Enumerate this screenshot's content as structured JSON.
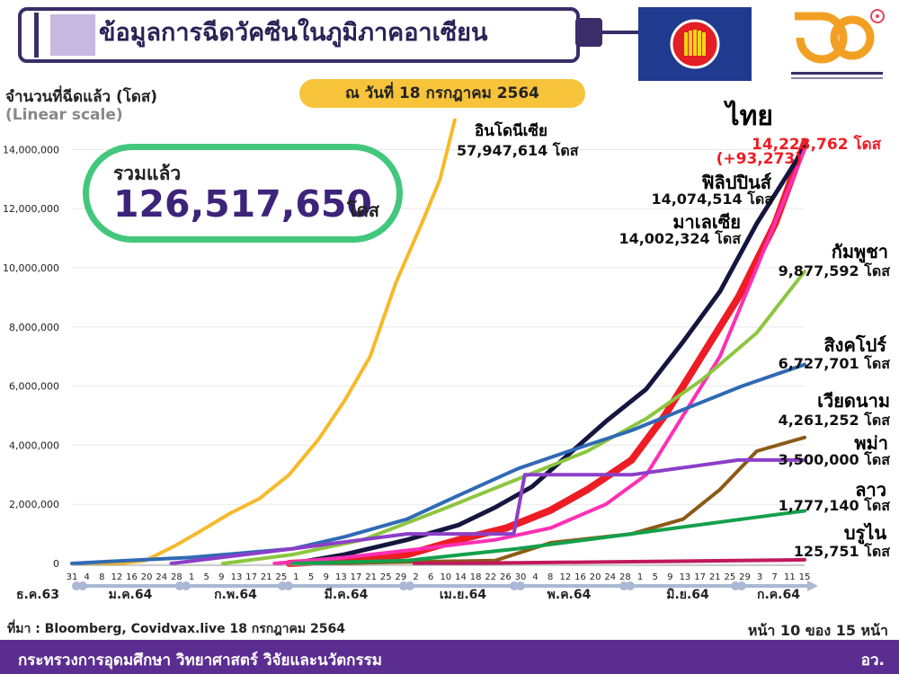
{
  "header": {
    "title": "ข้อมูลการฉีดวัคซีนในภูมิภาคอาเซียน",
    "y_axis_title": "จำนวนที่ฉีดแล้ว (โดส)",
    "y_scale_note": "(Linear scale)",
    "date_badge": "ณ วันที่ 18 กรกฎาคม 2564"
  },
  "total": {
    "label": "รวมแล้ว",
    "value": "126,517,650",
    "unit": "โดส"
  },
  "series_labels": [
    {
      "name": "อินโดนีเซีย",
      "value": "57,947,614 โดส",
      "color": "#f7b92b"
    },
    {
      "name": "ไทย",
      "value": "14,223,762 โดส",
      "change": "(+93,273)",
      "color": "#ee1c24"
    },
    {
      "name": "ฟิลิปปินส์",
      "value": "14,074,514 โดส",
      "color": "#14163f"
    },
    {
      "name": "มาเลเซีย",
      "value": "14,002,324 โดส",
      "color": "#ff2fb4"
    },
    {
      "name": "กัมพูชา",
      "value": "9,877,592 โดส",
      "color": "#8cc63f"
    },
    {
      "name": "สิงคโปร์",
      "value": "6,727,701 โดส",
      "color": "#2f6ab5"
    },
    {
      "name": "เวียดนาม",
      "value": "4,261,252 โดส",
      "color": "#8b5a17"
    },
    {
      "name": "พม่า",
      "value": "3,500,000 โดส",
      "color": "#8c3fc8"
    },
    {
      "name": "ลาว",
      "value": "1,777,140 โดส",
      "color": "#14a04b"
    },
    {
      "name": "บรูไน",
      "value": "125,751 โดส",
      "color": "#c2185b"
    }
  ],
  "chart_data": {
    "type": "line",
    "y_ticks": [
      "0",
      "2,000,000",
      "4,000,000",
      "6,000,000",
      "8,000,000",
      "10,000,000",
      "12,000,000",
      "14,000,000"
    ],
    "ylim": [
      0,
      14500000
    ],
    "x_day_ticks": [
      "31",
      "4",
      "8",
      "12",
      "16",
      "20",
      "24",
      "28",
      "1",
      "5",
      "9",
      "13",
      "17",
      "21",
      "25",
      "1",
      "5",
      "9",
      "13",
      "17",
      "21",
      "25",
      "29",
      "2",
      "6",
      "10",
      "14",
      "18",
      "22",
      "26",
      "30",
      "4",
      "8",
      "12",
      "16",
      "20",
      "24",
      "28",
      "1",
      "5",
      "9",
      "13",
      "17",
      "21",
      "25",
      "29",
      "3",
      "7",
      "11",
      "15"
    ],
    "x_month_labels": [
      "ธ.ค.63",
      "ม.ค.64",
      "ก.พ.64",
      "มี.ค.64",
      "เม.ย.64",
      "พ.ค.64",
      "มิ.ย.64",
      "ก.ค.64"
    ],
    "series": [
      {
        "name": "อินโดนีเซีย",
        "color": "#f7b92b",
        "x": [
          "2020-12-31",
          "2021-01-13",
          "2021-01-20",
          "2021-01-28",
          "2021-02-04",
          "2021-02-12",
          "2021-02-20",
          "2021-02-28",
          "2021-03-08",
          "2021-03-15",
          "2021-03-22",
          "2021-03-29",
          "2021-04-05",
          "2021-04-10",
          "2021-04-14"
        ],
        "y": [
          0,
          0,
          100000,
          600000,
          1100000,
          1700000,
          2200000,
          3000000,
          4200000,
          5500000,
          7000000,
          9500000,
          11500000,
          13000000,
          15000000
        ]
      },
      {
        "name": "ไทย",
        "color": "#ee1c24",
        "x": [
          "2021-02-28",
          "2021-03-15",
          "2021-04-01",
          "2021-04-15",
          "2021-04-28",
          "2021-05-10",
          "2021-05-20",
          "2021-06-01",
          "2021-06-10",
          "2021-06-20",
          "2021-06-30",
          "2021-07-10",
          "2021-07-18"
        ],
        "y": [
          0,
          100000,
          300000,
          800000,
          1200000,
          1800000,
          2500000,
          3500000,
          5000000,
          7000000,
          9000000,
          11500000,
          14223762
        ]
      },
      {
        "name": "ฟิลิปปินส์",
        "color": "#14163f",
        "x": [
          "2021-03-01",
          "2021-03-15",
          "2021-04-01",
          "2021-04-15",
          "2021-04-25",
          "2021-05-05",
          "2021-05-15",
          "2021-05-25",
          "2021-06-05",
          "2021-06-15",
          "2021-06-25",
          "2021-07-05",
          "2021-07-18"
        ],
        "y": [
          0,
          300000,
          800000,
          1300000,
          1900000,
          2600000,
          3700000,
          4800000,
          5900000,
          7500000,
          9200000,
          11500000,
          14074514
        ]
      },
      {
        "name": "มาเลเซีย",
        "color": "#ff2fb4",
        "x": [
          "2021-02-24",
          "2021-03-15",
          "2021-04-05",
          "2021-04-25",
          "2021-05-10",
          "2021-05-25",
          "2021-06-05",
          "2021-06-15",
          "2021-06-25",
          "2021-07-05",
          "2021-07-18"
        ],
        "y": [
          0,
          200000,
          500000,
          800000,
          1200000,
          2000000,
          3000000,
          5000000,
          7000000,
          10000000,
          14002324
        ]
      },
      {
        "name": "กัมพูชา",
        "color": "#8cc63f",
        "x": [
          "2021-02-10",
          "2021-03-01",
          "2021-03-20",
          "2021-04-10",
          "2021-04-30",
          "2021-05-20",
          "2021-06-05",
          "2021-06-20",
          "2021-07-05",
          "2021-07-18"
        ],
        "y": [
          0,
          300000,
          800000,
          1800000,
          2800000,
          3800000,
          4900000,
          6200000,
          7800000,
          9877592
        ]
      },
      {
        "name": "สิงคโปร์",
        "color": "#2f6ab5",
        "x": [
          "2020-12-31",
          "2021-01-15",
          "2021-02-01",
          "2021-02-15",
          "2021-03-01",
          "2021-03-15",
          "2021-04-01",
          "2021-04-15",
          "2021-05-01",
          "2021-05-15",
          "2021-06-01",
          "2021-06-15",
          "2021-07-01",
          "2021-07-18"
        ],
        "y": [
          0,
          100000,
          200000,
          350000,
          500000,
          900000,
          1500000,
          2300000,
          3200000,
          3800000,
          4500000,
          5200000,
          6000000,
          6727701
        ]
      },
      {
        "name": "เวียดนาม",
        "color": "#8b5a17",
        "x": [
          "2021-03-08",
          "2021-04-01",
          "2021-04-25",
          "2021-05-10",
          "2021-06-01",
          "2021-06-15",
          "2021-06-25",
          "2021-07-05",
          "2021-07-18"
        ],
        "y": [
          0,
          50000,
          100000,
          700000,
          1000000,
          1500000,
          2500000,
          3800000,
          4261252
        ]
      },
      {
        "name": "พม่า",
        "color": "#8c3fc8",
        "x": [
          "2021-01-27",
          "2021-03-01",
          "2021-04-01",
          "2021-04-30",
          "2021-05-03",
          "2021-06-01",
          "2021-06-30",
          "2021-07-18"
        ],
        "y": [
          0,
          500000,
          1000000,
          1000000,
          3000000,
          3000000,
          3500000,
          3500000
        ]
      },
      {
        "name": "ลาว",
        "color": "#14a04b",
        "x": [
          "2021-03-01",
          "2021-04-01",
          "2021-05-01",
          "2021-06-01",
          "2021-07-01",
          "2021-07-18"
        ],
        "y": [
          0,
          100000,
          500000,
          1000000,
          1500000,
          1777140
        ]
      },
      {
        "name": "บรูไน",
        "color": "#c2185b",
        "x": [
          "2021-04-03",
          "2021-05-01",
          "2021-06-01",
          "2021-07-18"
        ],
        "y": [
          0,
          20000,
          60000,
          125751
        ]
      }
    ]
  },
  "footer": {
    "source": "ที่มา : Bloomberg, Covidvax.live 18 กรกฎาคม 2564",
    "page_info": "หน้า 10 ของ 15 หน้า",
    "ministry": "กระทรวงการอุดมศึกษา วิทยาศาสตร์ วิจัยและนวัตกรรม",
    "abbr": "อว."
  }
}
